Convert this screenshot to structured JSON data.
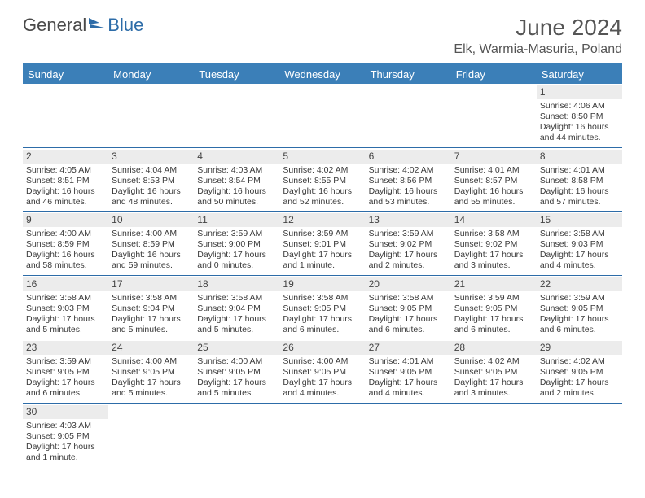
{
  "brand": {
    "part1": "General",
    "part2": "Blue"
  },
  "title": "June 2024",
  "location": "Elk, Warmia-Masuria, Poland",
  "colors": {
    "header_bg": "#3b7fb8",
    "header_text": "#ffffff",
    "border": "#2d6ca8",
    "daynum_bg": "#ececec",
    "text": "#3a3a3a"
  },
  "weekdays": [
    "Sunday",
    "Monday",
    "Tuesday",
    "Wednesday",
    "Thursday",
    "Friday",
    "Saturday"
  ],
  "weeks": [
    [
      null,
      null,
      null,
      null,
      null,
      null,
      {
        "n": "1",
        "sr": "Sunrise: 4:06 AM",
        "ss": "Sunset: 8:50 PM",
        "dl1": "Daylight: 16 hours",
        "dl2": "and 44 minutes."
      }
    ],
    [
      {
        "n": "2",
        "sr": "Sunrise: 4:05 AM",
        "ss": "Sunset: 8:51 PM",
        "dl1": "Daylight: 16 hours",
        "dl2": "and 46 minutes."
      },
      {
        "n": "3",
        "sr": "Sunrise: 4:04 AM",
        "ss": "Sunset: 8:53 PM",
        "dl1": "Daylight: 16 hours",
        "dl2": "and 48 minutes."
      },
      {
        "n": "4",
        "sr": "Sunrise: 4:03 AM",
        "ss": "Sunset: 8:54 PM",
        "dl1": "Daylight: 16 hours",
        "dl2": "and 50 minutes."
      },
      {
        "n": "5",
        "sr": "Sunrise: 4:02 AM",
        "ss": "Sunset: 8:55 PM",
        "dl1": "Daylight: 16 hours",
        "dl2": "and 52 minutes."
      },
      {
        "n": "6",
        "sr": "Sunrise: 4:02 AM",
        "ss": "Sunset: 8:56 PM",
        "dl1": "Daylight: 16 hours",
        "dl2": "and 53 minutes."
      },
      {
        "n": "7",
        "sr": "Sunrise: 4:01 AM",
        "ss": "Sunset: 8:57 PM",
        "dl1": "Daylight: 16 hours",
        "dl2": "and 55 minutes."
      },
      {
        "n": "8",
        "sr": "Sunrise: 4:01 AM",
        "ss": "Sunset: 8:58 PM",
        "dl1": "Daylight: 16 hours",
        "dl2": "and 57 minutes."
      }
    ],
    [
      {
        "n": "9",
        "sr": "Sunrise: 4:00 AM",
        "ss": "Sunset: 8:59 PM",
        "dl1": "Daylight: 16 hours",
        "dl2": "and 58 minutes."
      },
      {
        "n": "10",
        "sr": "Sunrise: 4:00 AM",
        "ss": "Sunset: 8:59 PM",
        "dl1": "Daylight: 16 hours",
        "dl2": "and 59 minutes."
      },
      {
        "n": "11",
        "sr": "Sunrise: 3:59 AM",
        "ss": "Sunset: 9:00 PM",
        "dl1": "Daylight: 17 hours",
        "dl2": "and 0 minutes."
      },
      {
        "n": "12",
        "sr": "Sunrise: 3:59 AM",
        "ss": "Sunset: 9:01 PM",
        "dl1": "Daylight: 17 hours",
        "dl2": "and 1 minute."
      },
      {
        "n": "13",
        "sr": "Sunrise: 3:59 AM",
        "ss": "Sunset: 9:02 PM",
        "dl1": "Daylight: 17 hours",
        "dl2": "and 2 minutes."
      },
      {
        "n": "14",
        "sr": "Sunrise: 3:58 AM",
        "ss": "Sunset: 9:02 PM",
        "dl1": "Daylight: 17 hours",
        "dl2": "and 3 minutes."
      },
      {
        "n": "15",
        "sr": "Sunrise: 3:58 AM",
        "ss": "Sunset: 9:03 PM",
        "dl1": "Daylight: 17 hours",
        "dl2": "and 4 minutes."
      }
    ],
    [
      {
        "n": "16",
        "sr": "Sunrise: 3:58 AM",
        "ss": "Sunset: 9:03 PM",
        "dl1": "Daylight: 17 hours",
        "dl2": "and 5 minutes."
      },
      {
        "n": "17",
        "sr": "Sunrise: 3:58 AM",
        "ss": "Sunset: 9:04 PM",
        "dl1": "Daylight: 17 hours",
        "dl2": "and 5 minutes."
      },
      {
        "n": "18",
        "sr": "Sunrise: 3:58 AM",
        "ss": "Sunset: 9:04 PM",
        "dl1": "Daylight: 17 hours",
        "dl2": "and 5 minutes."
      },
      {
        "n": "19",
        "sr": "Sunrise: 3:58 AM",
        "ss": "Sunset: 9:05 PM",
        "dl1": "Daylight: 17 hours",
        "dl2": "and 6 minutes."
      },
      {
        "n": "20",
        "sr": "Sunrise: 3:58 AM",
        "ss": "Sunset: 9:05 PM",
        "dl1": "Daylight: 17 hours",
        "dl2": "and 6 minutes."
      },
      {
        "n": "21",
        "sr": "Sunrise: 3:59 AM",
        "ss": "Sunset: 9:05 PM",
        "dl1": "Daylight: 17 hours",
        "dl2": "and 6 minutes."
      },
      {
        "n": "22",
        "sr": "Sunrise: 3:59 AM",
        "ss": "Sunset: 9:05 PM",
        "dl1": "Daylight: 17 hours",
        "dl2": "and 6 minutes."
      }
    ],
    [
      {
        "n": "23",
        "sr": "Sunrise: 3:59 AM",
        "ss": "Sunset: 9:05 PM",
        "dl1": "Daylight: 17 hours",
        "dl2": "and 6 minutes."
      },
      {
        "n": "24",
        "sr": "Sunrise: 4:00 AM",
        "ss": "Sunset: 9:05 PM",
        "dl1": "Daylight: 17 hours",
        "dl2": "and 5 minutes."
      },
      {
        "n": "25",
        "sr": "Sunrise: 4:00 AM",
        "ss": "Sunset: 9:05 PM",
        "dl1": "Daylight: 17 hours",
        "dl2": "and 5 minutes."
      },
      {
        "n": "26",
        "sr": "Sunrise: 4:00 AM",
        "ss": "Sunset: 9:05 PM",
        "dl1": "Daylight: 17 hours",
        "dl2": "and 4 minutes."
      },
      {
        "n": "27",
        "sr": "Sunrise: 4:01 AM",
        "ss": "Sunset: 9:05 PM",
        "dl1": "Daylight: 17 hours",
        "dl2": "and 4 minutes."
      },
      {
        "n": "28",
        "sr": "Sunrise: 4:02 AM",
        "ss": "Sunset: 9:05 PM",
        "dl1": "Daylight: 17 hours",
        "dl2": "and 3 minutes."
      },
      {
        "n": "29",
        "sr": "Sunrise: 4:02 AM",
        "ss": "Sunset: 9:05 PM",
        "dl1": "Daylight: 17 hours",
        "dl2": "and 2 minutes."
      }
    ],
    [
      {
        "n": "30",
        "sr": "Sunrise: 4:03 AM",
        "ss": "Sunset: 9:05 PM",
        "dl1": "Daylight: 17 hours",
        "dl2": "and 1 minute."
      },
      null,
      null,
      null,
      null,
      null,
      null
    ]
  ]
}
